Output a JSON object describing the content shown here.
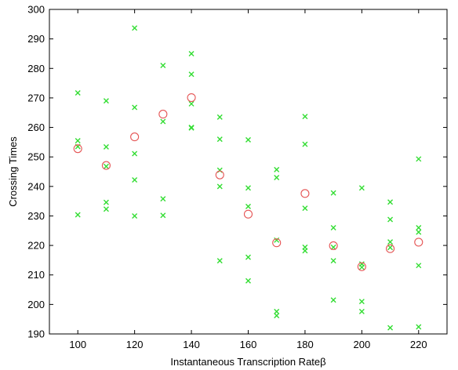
{
  "chart_data": {
    "type": "scatter",
    "title": "",
    "xlabel": "Instantaneous Transcription Rateβ",
    "ylabel": "Crossing Times",
    "xlim": [
      90,
      230
    ],
    "ylim": [
      190,
      300
    ],
    "xticks": [
      100,
      120,
      140,
      160,
      180,
      200,
      220
    ],
    "yticks": [
      190,
      200,
      210,
      220,
      230,
      240,
      250,
      260,
      270,
      280,
      290,
      300
    ],
    "grid": false,
    "legend": "none",
    "series": [
      {
        "marker": "x",
        "color": "#33dd33",
        "points": [
          [
            100,
            271.7
          ],
          [
            100,
            255.5
          ],
          [
            100,
            253.5
          ],
          [
            100,
            230.4
          ],
          [
            110,
            269
          ],
          [
            110,
            253.4
          ],
          [
            110,
            246.8
          ],
          [
            110,
            234.6
          ],
          [
            110,
            232.3
          ],
          [
            120,
            293.7
          ],
          [
            120,
            266.8
          ],
          [
            120,
            251.1
          ],
          [
            120,
            242.2
          ],
          [
            120,
            230
          ],
          [
            130,
            281
          ],
          [
            130,
            262
          ],
          [
            130,
            235.8
          ],
          [
            130,
            230.2
          ],
          [
            140,
            285
          ],
          [
            140,
            278
          ],
          [
            140,
            268
          ],
          [
            140,
            260
          ],
          [
            140,
            259.8
          ],
          [
            150,
            263.5
          ],
          [
            150,
            256
          ],
          [
            150,
            245.5
          ],
          [
            150,
            240
          ],
          [
            150,
            214.8
          ],
          [
            160,
            255.8
          ],
          [
            160,
            239.5
          ],
          [
            160,
            233.2
          ],
          [
            160,
            216
          ],
          [
            160,
            208
          ],
          [
            170,
            245.7
          ],
          [
            170,
            243
          ],
          [
            170,
            221.8
          ],
          [
            170,
            197.6
          ],
          [
            170,
            196.2
          ],
          [
            180,
            263.7
          ],
          [
            180,
            254.3
          ],
          [
            180,
            232.6
          ],
          [
            180,
            219.4
          ],
          [
            180,
            218.2
          ],
          [
            190,
            237.8
          ],
          [
            190,
            226
          ],
          [
            190,
            219.4
          ],
          [
            190,
            214.8
          ],
          [
            190,
            201.5
          ],
          [
            200,
            239.5
          ],
          [
            200,
            213.7
          ],
          [
            200,
            212.6
          ],
          [
            200,
            201
          ],
          [
            200,
            197.6
          ],
          [
            210,
            234.7
          ],
          [
            210,
            228.8
          ],
          [
            210,
            221.2
          ],
          [
            210,
            219.3
          ],
          [
            210,
            192.1
          ],
          [
            220,
            249.3
          ],
          [
            220,
            226
          ],
          [
            220,
            224.5
          ],
          [
            220,
            213.2
          ],
          [
            220,
            192.4
          ]
        ]
      },
      {
        "marker": "o",
        "color": "#e55555",
        "points": [
          [
            100,
            252.8
          ],
          [
            110,
            247.1
          ],
          [
            120,
            256.8
          ],
          [
            130,
            264.5
          ],
          [
            140,
            270.1
          ],
          [
            150,
            243.9
          ],
          [
            160,
            230.6
          ],
          [
            170,
            220.9
          ],
          [
            180,
            237.6
          ],
          [
            190,
            219.9
          ],
          [
            200,
            212.8
          ],
          [
            210,
            218.9
          ],
          [
            220,
            221.1
          ]
        ]
      }
    ]
  }
}
